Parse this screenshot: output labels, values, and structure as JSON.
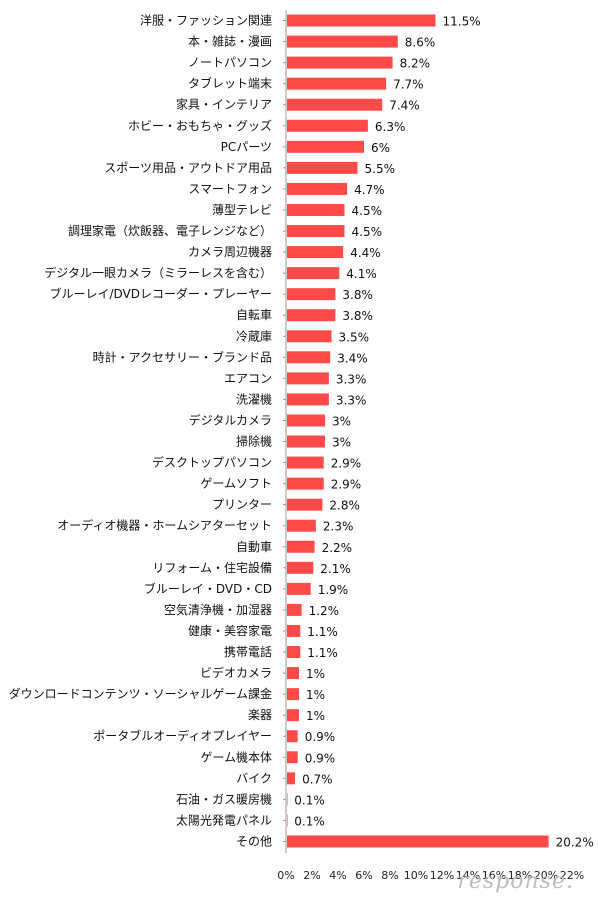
{
  "chart_data": {
    "type": "bar",
    "orientation": "horizontal",
    "bar_color": "#ff4a4a",
    "value_suffix": "%",
    "xlim": [
      0,
      22
    ],
    "xticks": [
      "0%",
      "2%",
      "4%",
      "6%",
      "8%",
      "10%",
      "12%",
      "14%",
      "16%",
      "18%",
      "20%",
      "22%"
    ],
    "grid": false,
    "categories": [
      "洋服・ファッション関連",
      "本・雑誌・漫画",
      "ノートパソコン",
      "タブレット端末",
      "家具・インテリア",
      "ホビー・おもちゃ・グッズ",
      "PCパーツ",
      "スポーツ用品・アウトドア用品",
      "スマートフォン",
      "薄型テレビ",
      "調理家電（炊飯器、電子レンジなど）",
      "カメラ周辺機器",
      "デジタル一眼カメラ（ミラーレスを含む）",
      "ブルーレイ/DVDレコーダー・プレーヤー",
      "自転車",
      "冷蔵庫",
      "時計・アクセサリー・ブランド品",
      "エアコン",
      "洗濯機",
      "デジタルカメラ",
      "掃除機",
      "デスクトップパソコン",
      "ゲームソフト",
      "プリンター",
      "オーディオ機器・ホームシアターセット",
      "自動車",
      "リフォーム・住宅設備",
      "ブルーレイ・DVD・CD",
      "空気清浄機・加湿器",
      "健康・美容家電",
      "携帯電話",
      "ビデオカメラ",
      "ダウンロードコンテンツ・ソーシャルゲーム課金",
      "楽器",
      "ポータブルオーディオプレイヤー",
      "ゲーム機本体",
      "バイク",
      "石油・ガス暖房機",
      "太陽光発電パネル",
      "その他"
    ],
    "values": [
      11.5,
      8.6,
      8.2,
      7.7,
      7.4,
      6.3,
      6,
      5.5,
      4.7,
      4.5,
      4.5,
      4.4,
      4.1,
      3.8,
      3.8,
      3.5,
      3.4,
      3.3,
      3.3,
      3,
      3,
      2.9,
      2.9,
      2.8,
      2.3,
      2.2,
      2.1,
      1.9,
      1.2,
      1.1,
      1.1,
      1,
      1,
      1,
      0.9,
      0.9,
      0.7,
      0.1,
      0.1,
      20.2
    ],
    "value_labels": [
      "11.5%",
      "8.6%",
      "8.2%",
      "7.7%",
      "7.4%",
      "6.3%",
      "6%",
      "5.5%",
      "4.7%",
      "4.5%",
      "4.5%",
      "4.4%",
      "4.1%",
      "3.8%",
      "3.8%",
      "3.5%",
      "3.4%",
      "3.3%",
      "3.3%",
      "3%",
      "3%",
      "2.9%",
      "2.9%",
      "2.8%",
      "2.3%",
      "2.2%",
      "2.1%",
      "1.9%",
      "1.2%",
      "1.1%",
      "1.1%",
      "1%",
      "1%",
      "1%",
      "0.9%",
      "0.9%",
      "0.7%",
      "0.1%",
      "0.1%",
      "20.2%"
    ],
    "title": "",
    "xlabel": "",
    "ylabel": ""
  },
  "watermark": "response."
}
